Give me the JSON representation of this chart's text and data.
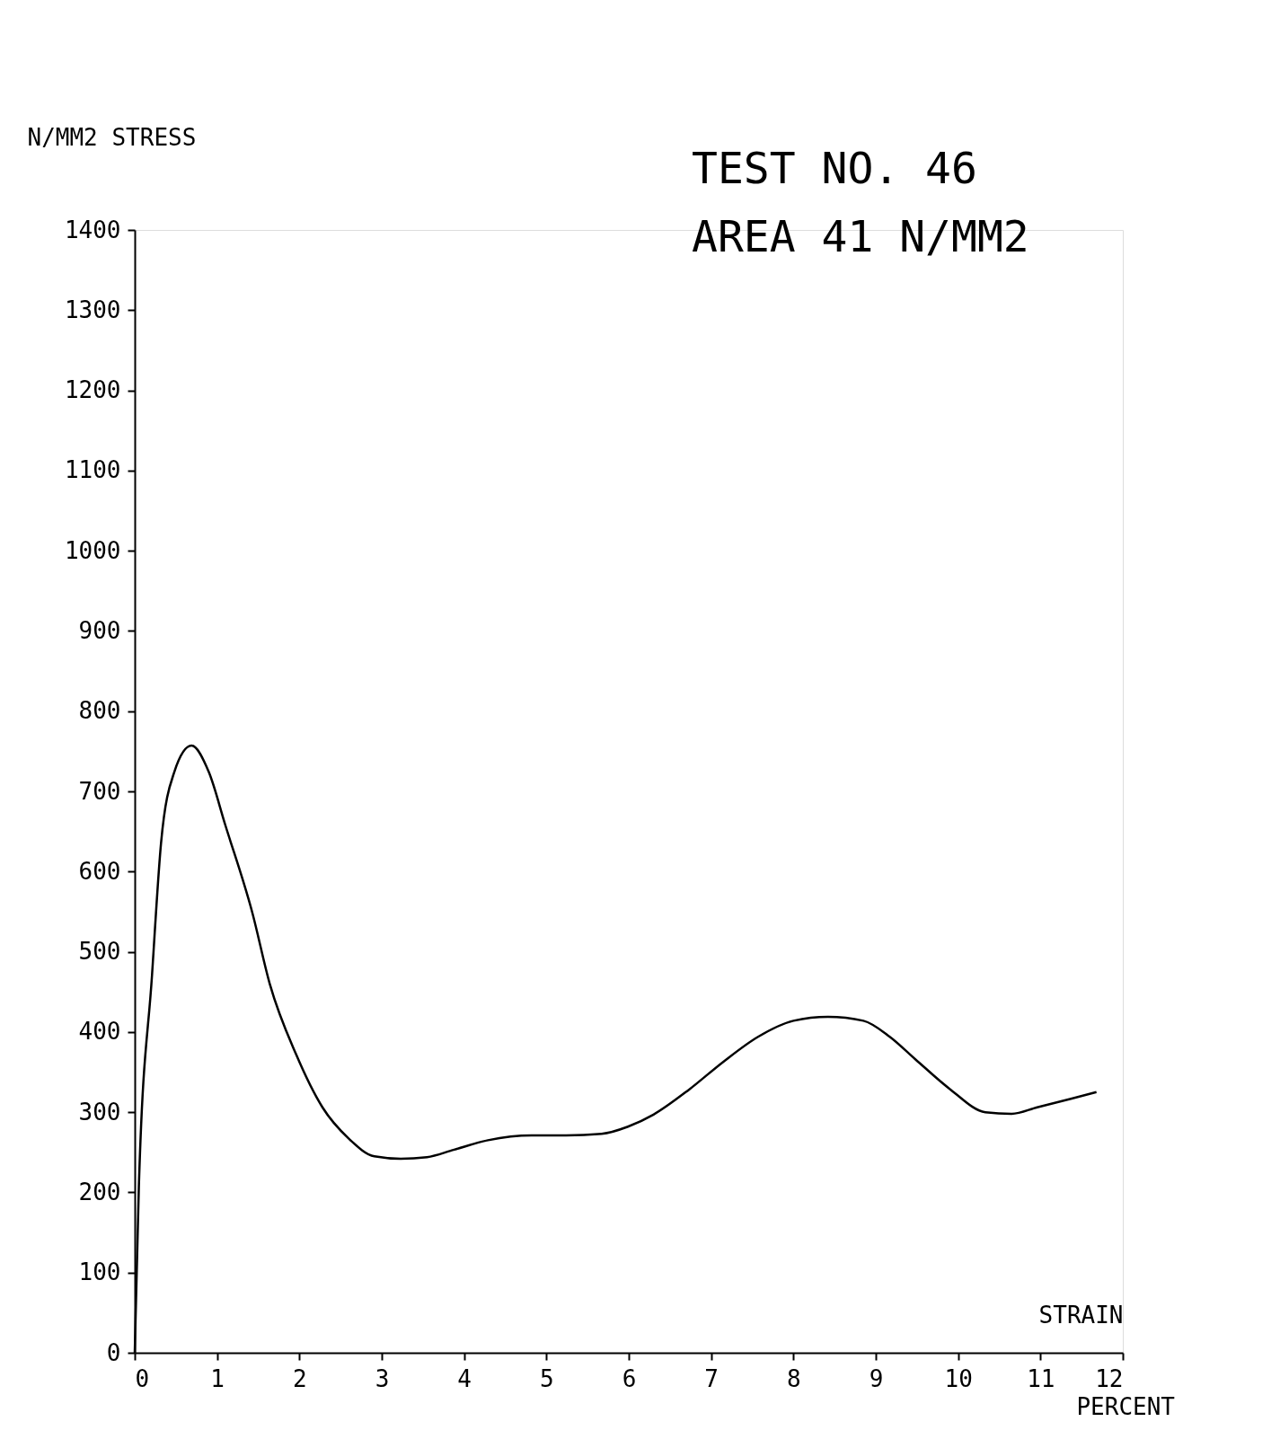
{
  "chart_data": {
    "type": "line",
    "title": "TEST NO. 46",
    "subtitle": "AREA 41  N/MM2",
    "xlabel": "STRAIN",
    "ylabel": "N/MM2  STRESS",
    "annotations": [
      "PERCENT"
    ],
    "x": [
      0,
      0.05,
      0.21,
      0.32,
      0.48,
      0.69,
      0.9,
      1.1,
      1.43,
      1.64,
      1.96,
      2.28,
      2.6,
      2.91,
      3.23,
      3.55,
      3.87,
      4.29,
      4.82,
      5.24,
      5.67,
      5.99,
      6.3,
      6.73,
      7.15,
      7.57,
      8.0,
      8.42,
      8.85,
      9.17,
      9.48,
      9.91,
      10.33,
      10.65,
      10.96,
      11.38,
      11.68
    ],
    "series": [
      {
        "color": "#000000",
        "values": [
          0,
          207,
          471,
          636,
          724,
          757,
          724,
          658,
          548,
          460,
          372,
          306,
          267,
          245,
          242,
          244,
          253,
          265,
          271,
          271,
          273,
          282,
          297,
          328,
          363,
          394,
          414,
          419,
          414,
          394,
          366,
          328,
          300,
          298,
          306,
          317,
          325
        ]
      }
    ],
    "xlim": [
      0,
      12
    ],
    "xticks": [
      0,
      1,
      2,
      3,
      4,
      5,
      6,
      7,
      8,
      9,
      10,
      11,
      12
    ],
    "ylim": [
      0,
      1400
    ],
    "yticks": [
      0,
      100,
      200,
      300,
      400,
      500,
      600,
      700,
      800,
      900,
      1000,
      1100,
      1200,
      1300,
      1400
    ],
    "grid": false,
    "marker": "none",
    "line_style": "solid"
  }
}
